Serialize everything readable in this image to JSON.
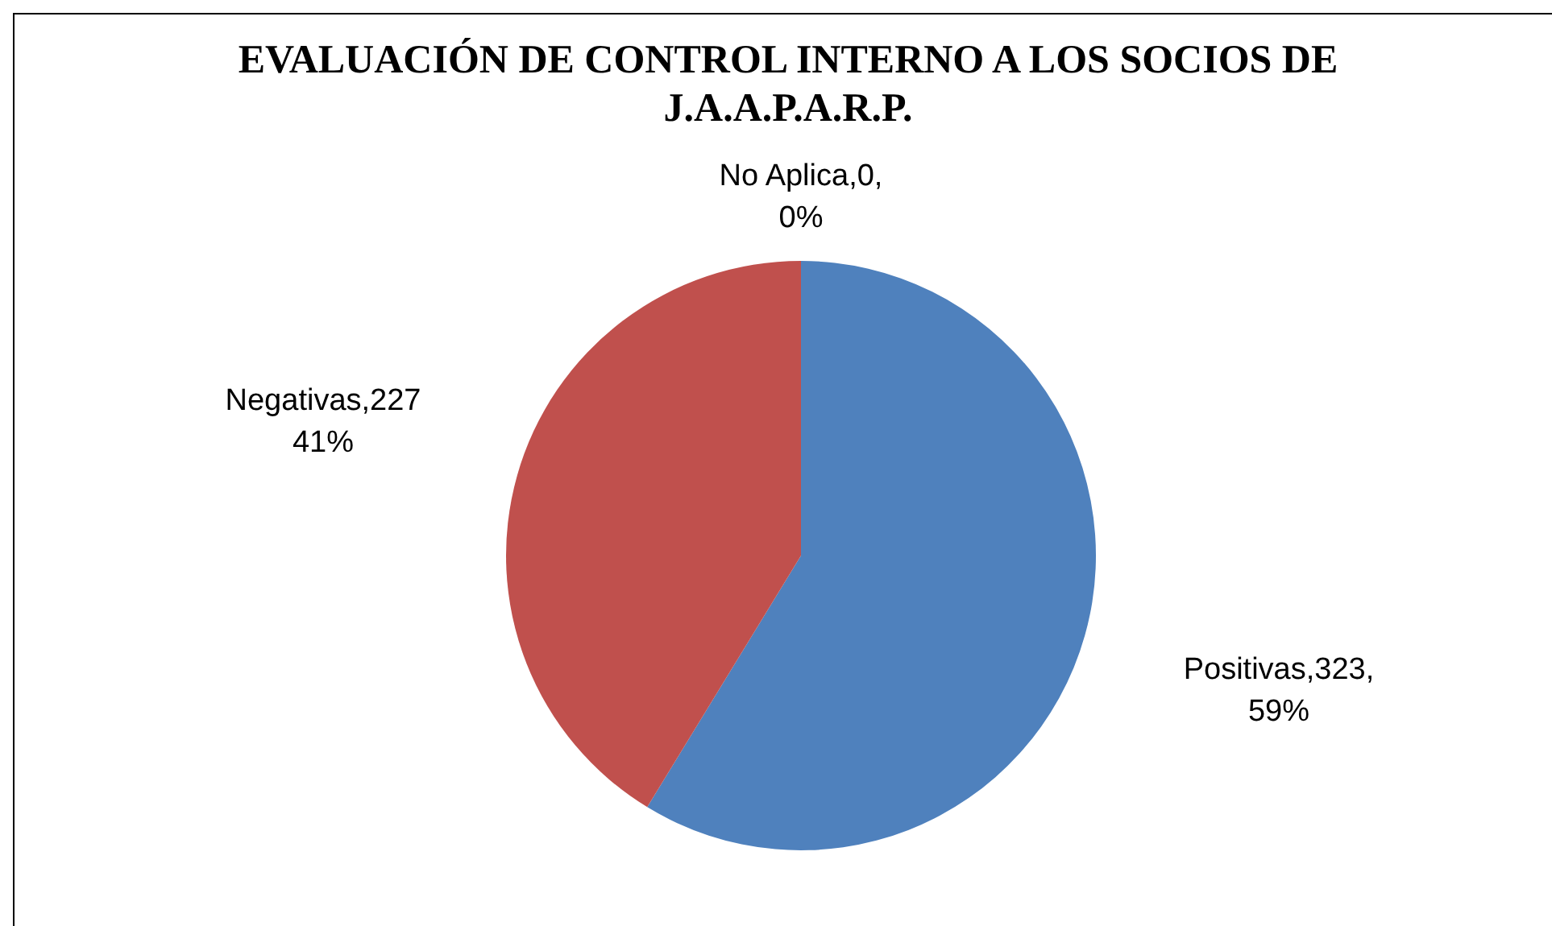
{
  "chart_data": {
    "type": "pie",
    "title": "EVALUACIÓN DE CONTROL INTERNO A LOS SOCIOS DE J.A.A.P.A.R.P.",
    "categories": [
      "Positivas",
      "Negativas",
      "No Aplica"
    ],
    "values": [
      323,
      227,
      0
    ],
    "colors": [
      "#4f81bd",
      "#c0504d",
      "#9bbb59"
    ],
    "value_labels": [
      ",323,\n59%",
      ",227\n41%",
      ",0,\n0%"
    ],
    "legend": false
  }
}
